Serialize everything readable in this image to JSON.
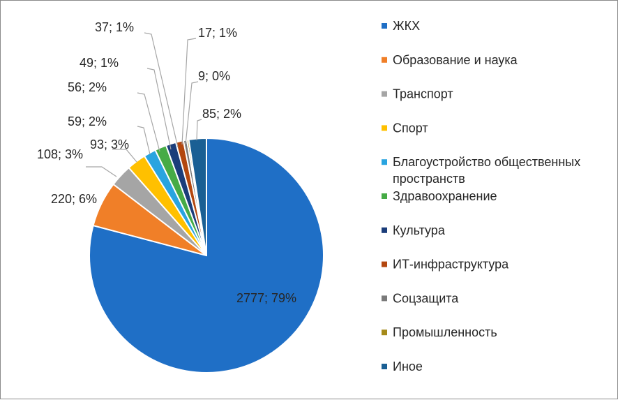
{
  "chart_data": {
    "type": "pie",
    "title": "",
    "start_angle_deg": 0,
    "direction": "clockwise",
    "legend_position": "right",
    "series": [
      {
        "label": "ЖКХ",
        "value": 2777,
        "percent": "79%",
        "color": "#1f6fc6"
      },
      {
        "label": "Образование и наука",
        "value": 220,
        "percent": "6%",
        "color": "#f07f28"
      },
      {
        "label": "Транспорт",
        "value": 108,
        "percent": "3%",
        "color": "#a5a5a5"
      },
      {
        "label": "Спорт",
        "value": 93,
        "percent": "3%",
        "color": "#ffc000"
      },
      {
        "label": "Благоустройство общественных пространств",
        "value": 59,
        "percent": "2%",
        "color": "#29a4e0"
      },
      {
        "label": "Здравоохранение",
        "value": 56,
        "percent": "2%",
        "color": "#46ab46"
      },
      {
        "label": "Культура",
        "value": 49,
        "percent": "1%",
        "color": "#1b3d7a"
      },
      {
        "label": "ИТ-инфраструктура",
        "value": 37,
        "percent": "1%",
        "color": "#b3470f"
      },
      {
        "label": "Соцзащита",
        "value": 17,
        "percent": "1%",
        "color": "#7a7a7a"
      },
      {
        "label": "Промышленность",
        "value": 9,
        "percent": "0%",
        "color": "#a58a1a"
      },
      {
        "label": "Иное",
        "value": 85,
        "percent": "2%",
        "color": "#1a5f94"
      }
    ],
    "data_labels": [
      "2777; 79%",
      "220; 6%",
      "108; 3%",
      "93; 3%",
      "59; 2%",
      "56; 2%",
      "49; 1%",
      "37; 1%",
      "17; 1%",
      "9; 0%",
      "85; 2%"
    ]
  }
}
